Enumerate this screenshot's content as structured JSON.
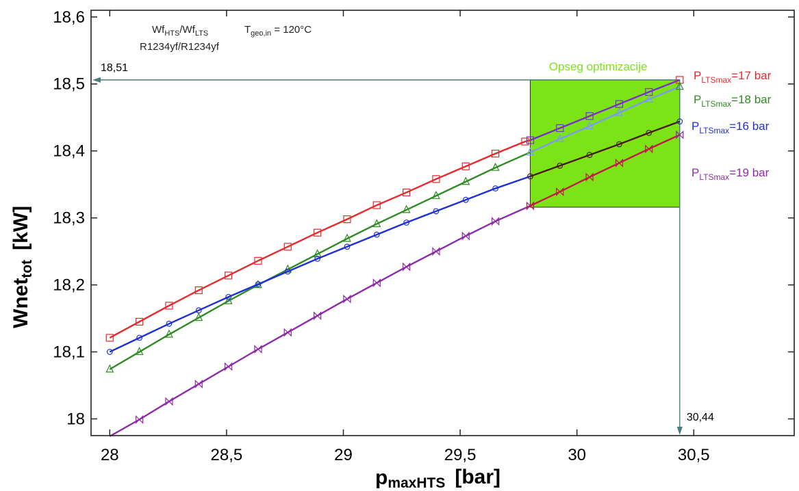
{
  "chart_data": {
    "type": "line",
    "xlabel_main": "p",
    "xlabel_sub": "maxHTS",
    "xlabel_unit": "[bar]",
    "ylabel_main": "Wnet",
    "ylabel_sub": "tot",
    "ylabel_unit": "[kW]",
    "xlim": [
      27.92,
      30.93
    ],
    "ylim": [
      17.975,
      18.61
    ],
    "xticks": [
      28,
      28.5,
      29,
      29.5,
      30,
      30.5
    ],
    "xtick_labels": [
      "28",
      "28,5",
      "29",
      "29,5",
      "30",
      "30,5"
    ],
    "yticks": [
      18.0,
      18.1,
      18.2,
      18.3,
      18.4,
      18.5,
      18.6
    ],
    "ytick_labels": [
      "18",
      "18,1",
      "18,2",
      "18,3",
      "18,4",
      "18,5",
      "18,6"
    ],
    "grid": false,
    "annotation": {
      "fluid_label_1": "Wf",
      "fluid_sub_1": "HTS",
      "fluid_sep": "/Wf",
      "fluid_sub_2": "LTS",
      "temp_label": "T",
      "temp_sub": "geo,in",
      "temp_value": " = 120°C",
      "fluids": "R1234yf/R1234yf"
    },
    "optimization_region": {
      "label": "Opseg optimizacije",
      "x": [
        29.8,
        30.44
      ],
      "y": [
        18.316,
        18.506
      ],
      "color": "#7CE317"
    },
    "markers": {
      "y_value_label": "18,51",
      "y_value": 18.506,
      "x_value_label": "30,44",
      "x_value": 30.44
    },
    "series": [
      {
        "name": "17",
        "legend_prefix": "P",
        "legend_sub": "LTSmax",
        "legend_suffix": "=17 bar",
        "color": "#E8282B",
        "color_in_region": "#7A30C8",
        "marker": "square",
        "x": [
          28.0,
          28.127,
          28.254,
          28.381,
          28.508,
          28.635,
          28.762,
          28.889,
          29.016,
          29.143,
          29.27,
          29.397,
          29.524,
          29.651,
          29.778,
          29.8,
          29.927,
          30.054,
          30.181,
          30.308,
          30.44
        ],
        "y": [
          18.121,
          18.145,
          18.169,
          18.192,
          18.214,
          18.236,
          18.257,
          18.278,
          18.298,
          18.319,
          18.338,
          18.358,
          18.377,
          18.396,
          18.414,
          18.416,
          18.434,
          18.452,
          18.47,
          18.488,
          18.506
        ]
      },
      {
        "name": "18",
        "legend_prefix": "P",
        "legend_sub": "LTSmax",
        "legend_suffix": "=18 bar",
        "color": "#2E8B22",
        "color_in_region": "#7B9CF0",
        "marker": "triangle",
        "x": [
          28.0,
          28.127,
          28.254,
          28.381,
          28.508,
          28.635,
          28.762,
          28.889,
          29.016,
          29.143,
          29.27,
          29.397,
          29.524,
          29.651,
          29.8,
          29.927,
          30.054,
          30.181,
          30.308,
          30.44
        ],
        "y": [
          18.074,
          18.1,
          18.126,
          18.151,
          18.176,
          18.2,
          18.223,
          18.246,
          18.269,
          18.291,
          18.312,
          18.333,
          18.354,
          18.375,
          18.398,
          18.418,
          18.437,
          18.457,
          18.477,
          18.496
        ]
      },
      {
        "name": "16",
        "legend_prefix": "P",
        "legend_sub": "LTSmax",
        "legend_suffix": "=16 bar",
        "color": "#1F2FD6",
        "color_in_region": "#4A1A0A",
        "marker": "circle",
        "x": [
          28.0,
          28.127,
          28.254,
          28.381,
          28.508,
          28.635,
          28.762,
          28.889,
          29.016,
          29.143,
          29.27,
          29.397,
          29.524,
          29.651,
          29.8,
          29.927,
          30.054,
          30.181,
          30.308,
          30.44
        ],
        "y": [
          18.1,
          18.121,
          18.142,
          18.162,
          18.182,
          18.201,
          18.22,
          18.239,
          18.257,
          18.275,
          18.293,
          18.31,
          18.327,
          18.344,
          18.362,
          18.378,
          18.394,
          18.41,
          18.427,
          18.444
        ]
      },
      {
        "name": "19",
        "legend_prefix": "P",
        "legend_sub": "LTSmax",
        "legend_suffix": "=19 bar",
        "color": "#8E2BA8",
        "color_in_region": "#C01A4A",
        "marker": "bowtie",
        "x": [
          28.0,
          28.127,
          28.254,
          28.381,
          28.508,
          28.635,
          28.762,
          28.889,
          29.016,
          29.143,
          29.27,
          29.397,
          29.524,
          29.651,
          29.8,
          29.927,
          30.054,
          30.181,
          30.308,
          30.44
        ],
        "y": [
          17.974,
          17.999,
          18.026,
          18.052,
          18.078,
          18.104,
          18.129,
          18.154,
          18.179,
          18.203,
          18.227,
          18.25,
          18.273,
          18.295,
          18.318,
          18.339,
          18.361,
          18.382,
          18.403,
          18.424
        ]
      }
    ]
  }
}
